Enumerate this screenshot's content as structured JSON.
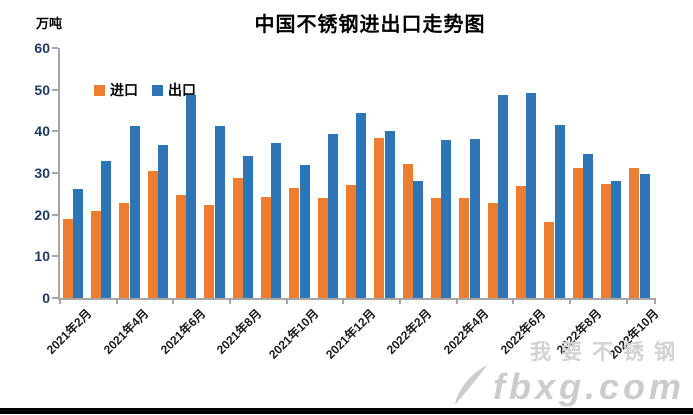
{
  "title": "中国不锈钢进出口走势图",
  "unit_label": "万吨",
  "legend": {
    "import_label": "进口",
    "export_label": "出口"
  },
  "colors": {
    "import": "#ED7D31",
    "export": "#2E75B6",
    "axis": "#A6A6A6",
    "y_tick_label": "#1F3864",
    "watermark": "#CCCCCC"
  },
  "watermark": {
    "line1": "我要不锈钢",
    "line2": "fbxg.com"
  },
  "chart_data": {
    "type": "bar",
    "title": "中国不锈钢进出口走势图",
    "ylabel": "万吨",
    "ylim": [
      0,
      60
    ],
    "y_ticks": [
      0,
      10,
      20,
      30,
      40,
      50,
      60
    ],
    "grid": false,
    "legend_position": "top-left-inside",
    "categories": [
      "2021年2月",
      "2021年3月",
      "2021年4月",
      "2021年5月",
      "2021年6月",
      "2021年7月",
      "2021年8月",
      "2021年9月",
      "2021年10月",
      "2021年11月",
      "2021年12月",
      "2022年1月",
      "2022年2月",
      "2022年3月",
      "2022年4月",
      "2022年5月",
      "2022年6月",
      "2022年7月",
      "2022年8月",
      "2022年9月",
      "2022年10月"
    ],
    "x_tick_labels_shown": [
      "2021年2月",
      "2021年4月",
      "2021年6月",
      "2021年8月",
      "2021年10月",
      "2021年12月",
      "2022年2月",
      "2022年4月",
      "2022年6月",
      "2022年8月",
      "2022年10月"
    ],
    "series": [
      {
        "name": "进口",
        "values": [
          18.9,
          20.8,
          22.7,
          30.5,
          24.8,
          22.3,
          28.9,
          24.3,
          26.5,
          24.1,
          27.1,
          38.4,
          32.2,
          24.0,
          24.0,
          22.8,
          27.0,
          18.2,
          31.2,
          27.3,
          31.2
        ]
      },
      {
        "name": "出口",
        "values": [
          26.2,
          33.0,
          41.2,
          36.8,
          48.8,
          41.2,
          34.0,
          37.1,
          31.9,
          39.4,
          44.3,
          40.2,
          28.2,
          38.0,
          38.1,
          48.7,
          49.2,
          41.5,
          34.6,
          28.1,
          29.8
        ]
      }
    ]
  }
}
